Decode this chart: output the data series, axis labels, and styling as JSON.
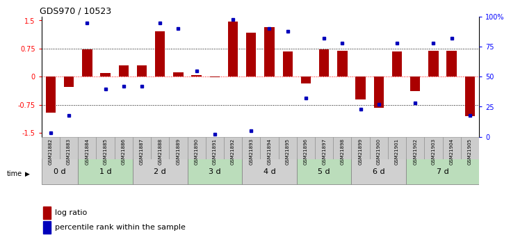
{
  "title": "GDS970 / 10523",
  "samples": [
    "GSM21882",
    "GSM21883",
    "GSM21884",
    "GSM21885",
    "GSM21886",
    "GSM21887",
    "GSM21888",
    "GSM21889",
    "GSM21890",
    "GSM21891",
    "GSM21892",
    "GSM21893",
    "GSM21894",
    "GSM21895",
    "GSM21896",
    "GSM21897",
    "GSM21898",
    "GSM21899",
    "GSM21900",
    "GSM21901",
    "GSM21902",
    "GSM21903",
    "GSM21904",
    "GSM21905"
  ],
  "log_ratio": [
    -0.95,
    -0.28,
    0.72,
    0.1,
    0.3,
    0.3,
    1.22,
    0.12,
    0.04,
    -0.02,
    1.48,
    1.18,
    1.32,
    0.68,
    -0.18,
    0.72,
    0.7,
    -0.6,
    -0.82,
    0.68,
    -0.38,
    0.7,
    0.7,
    -1.05
  ],
  "percentile": [
    3,
    18,
    95,
    40,
    42,
    42,
    95,
    90,
    55,
    2,
    98,
    5,
    90,
    88,
    32,
    82,
    78,
    23,
    27,
    78,
    28,
    78,
    82,
    18
  ],
  "time_labels": [
    "0 d",
    "1 d",
    "2 d",
    "3 d",
    "4 d",
    "5 d",
    "6 d",
    "7 d"
  ],
  "time_ranges": [
    [
      0,
      2
    ],
    [
      2,
      5
    ],
    [
      5,
      8
    ],
    [
      8,
      11
    ],
    [
      11,
      14
    ],
    [
      14,
      17
    ],
    [
      17,
      20
    ],
    [
      20,
      24
    ]
  ],
  "time_colors": [
    "#d0d0d0",
    "#bbddbb",
    "#d0d0d0",
    "#bbddbb",
    "#d0d0d0",
    "#bbddbb",
    "#d0d0d0",
    "#bbddbb"
  ],
  "bar_color": "#aa0000",
  "dot_color": "#0000bb",
  "ylim_left": [
    -1.6,
    1.6
  ],
  "ylim_right": [
    0,
    100
  ],
  "yticks_left": [
    -1.5,
    -0.75,
    0,
    0.75,
    1.5
  ],
  "yticks_right": [
    0,
    25,
    50,
    75,
    100
  ],
  "ytick_labels_right": [
    "0",
    "25",
    "50",
    "75",
    "100%"
  ],
  "legend_items": [
    "log ratio",
    "percentile rank within the sample"
  ]
}
